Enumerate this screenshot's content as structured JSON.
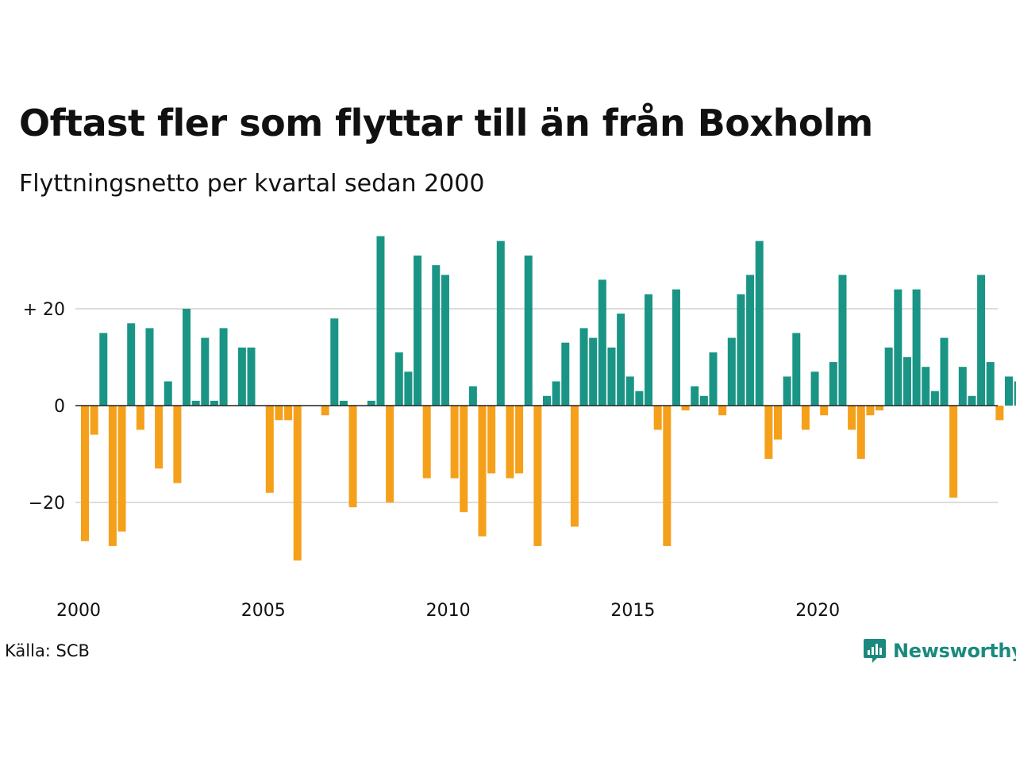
{
  "title": "Oftast fler som flyttar till än från Boxholm",
  "subtitle": "Flyttningsnetto per kvartal sedan 2000",
  "source": "Källa: SCB",
  "brand": {
    "name": "Newsworthy",
    "icon": "newsworthy-chart-logo-icon",
    "color": "#1a8a7e"
  },
  "colors": {
    "positive": "#1a9585",
    "negative": "#f5a01a",
    "gridline": "#dcdcdc",
    "zero_line": "#222222"
  },
  "chart_data": {
    "type": "bar",
    "title": "Oftast fler som flyttar till än från Boxholm",
    "subtitle": "Flyttningsnetto per kvartal sedan 2000",
    "xlabel": "",
    "ylabel": "",
    "x_start": 2000,
    "periods_per_year": 4,
    "ylim": [
      -35,
      35
    ],
    "yticks": [
      {
        "value": 20,
        "label": "+ 20"
      },
      {
        "value": 0,
        "label": "0"
      },
      {
        "value": -20,
        "label": "−20"
      }
    ],
    "xticks": [
      {
        "value": 2000,
        "label": "2000"
      },
      {
        "value": 2005,
        "label": "2005"
      },
      {
        "value": 2010,
        "label": "2010"
      },
      {
        "value": 2015,
        "label": "2015"
      },
      {
        "value": 2020,
        "label": "2020"
      }
    ],
    "grid": true,
    "legend": "none",
    "values": [
      -28,
      -6,
      15,
      -29,
      -26,
      17,
      -5,
      16,
      -13,
      5,
      -16,
      20,
      1,
      14,
      1,
      16,
      0,
      12,
      12,
      0,
      -18,
      -3,
      -3,
      -32,
      0,
      0,
      -2,
      18,
      1,
      -21,
      0,
      1,
      35,
      -20,
      11,
      7,
      31,
      -15,
      29,
      27,
      -15,
      -22,
      4,
      -27,
      -14,
      34,
      -15,
      -14,
      31,
      -29,
      2,
      5,
      13,
      -25,
      16,
      14,
      26,
      12,
      19,
      6,
      3,
      23,
      -5,
      -29,
      24,
      -1,
      4,
      2,
      11,
      -2,
      14,
      23,
      27,
      34,
      -11,
      -7,
      6,
      15,
      -5,
      7,
      -2,
      9,
      27,
      -5,
      -11,
      -2,
      -1,
      12,
      24,
      10,
      24,
      8,
      3,
      14,
      -19,
      8,
      2,
      27,
      9,
      -3,
      6,
      5
    ]
  }
}
